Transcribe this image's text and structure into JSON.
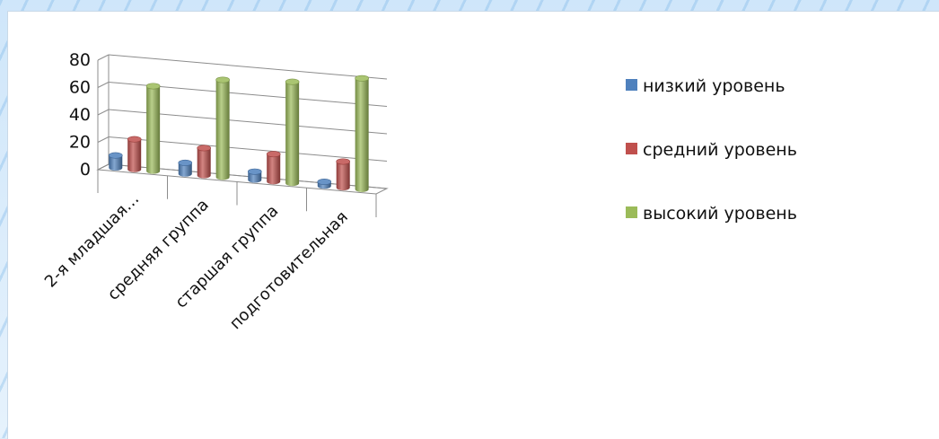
{
  "chart_data": {
    "type": "bar",
    "title": "",
    "xlabel": "",
    "ylabel": "",
    "ylim": [
      0,
      80
    ],
    "yticks": [
      "0",
      "20",
      "40",
      "60",
      "80"
    ],
    "grid": true,
    "legend_position": "right",
    "categories": [
      "2-я младшая…",
      "средняя группа",
      "старшая группа",
      "подготовительная"
    ],
    "series": [
      {
        "name": "низкий уровень",
        "color": "#4f81bd",
        "values": [
          9,
          8,
          6,
          3
        ]
      },
      {
        "name": "средний уровень",
        "color": "#c0504d",
        "values": [
          22,
          20,
          20,
          19
        ]
      },
      {
        "name": "высокий уровень",
        "color": "#9bbb59",
        "values": [
          62,
          71,
          74,
          81
        ]
      }
    ]
  }
}
